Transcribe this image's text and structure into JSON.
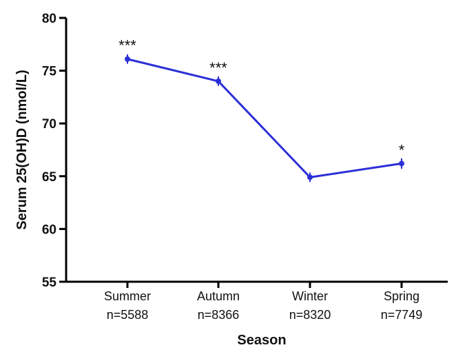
{
  "chart_data": {
    "type": "line",
    "title": "",
    "xlabel": "Season",
    "ylabel": "Serum 25(OH)D (nmol/L)",
    "ylim": [
      55,
      80
    ],
    "yticks": [
      55,
      60,
      65,
      70,
      75,
      80
    ],
    "grid": false,
    "categories": [
      "Summer",
      "Autumn",
      "Winter",
      "Spring"
    ],
    "sample_sizes": [
      "n=5588",
      "n=8366",
      "n=8320",
      "n=7749"
    ],
    "series": [
      {
        "values": [
          76.1,
          74.0,
          64.9,
          66.2
        ],
        "error": [
          0.25,
          0.25,
          0.25,
          0.3
        ],
        "color": "#2b2fd6"
      }
    ],
    "annotations": [
      "***",
      "***",
      "",
      "*"
    ]
  }
}
